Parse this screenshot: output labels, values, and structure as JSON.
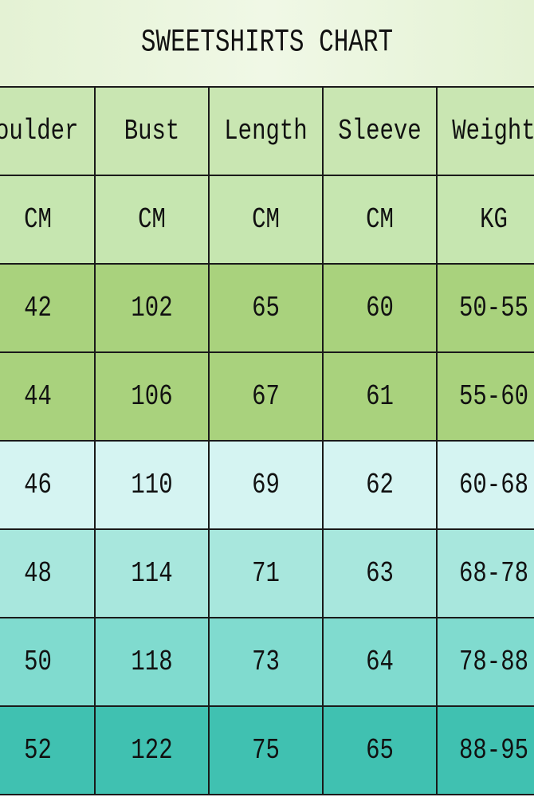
{
  "title": "SWEETSHIRTS CHART",
  "headers": [
    "houlder",
    "Bust",
    "Length",
    "Sleeve",
    "Weight"
  ],
  "units": [
    "CM",
    "CM",
    "CM",
    "CM",
    "KG"
  ],
  "rows": [
    [
      "42",
      "102",
      "65",
      "60",
      "50-55"
    ],
    [
      "44",
      "106",
      "67",
      "61",
      "55-60"
    ],
    [
      "46",
      "110",
      "69",
      "62",
      "60-68"
    ],
    [
      "48",
      "114",
      "71",
      "63",
      "68-78"
    ],
    [
      "50",
      "118",
      "73",
      "64",
      "78-88"
    ],
    [
      "52",
      "122",
      "75",
      "65",
      "88-95"
    ]
  ],
  "colors": {
    "title_bg": "#e8f4da",
    "header_bg": "#c9e6b2",
    "row_colors": [
      "#a9d27d",
      "#a9d27d",
      "#d5f4f2",
      "#a8e7dd",
      "#80dbcf",
      "#40c1b1"
    ],
    "grid_line": "#1a1a1a"
  }
}
